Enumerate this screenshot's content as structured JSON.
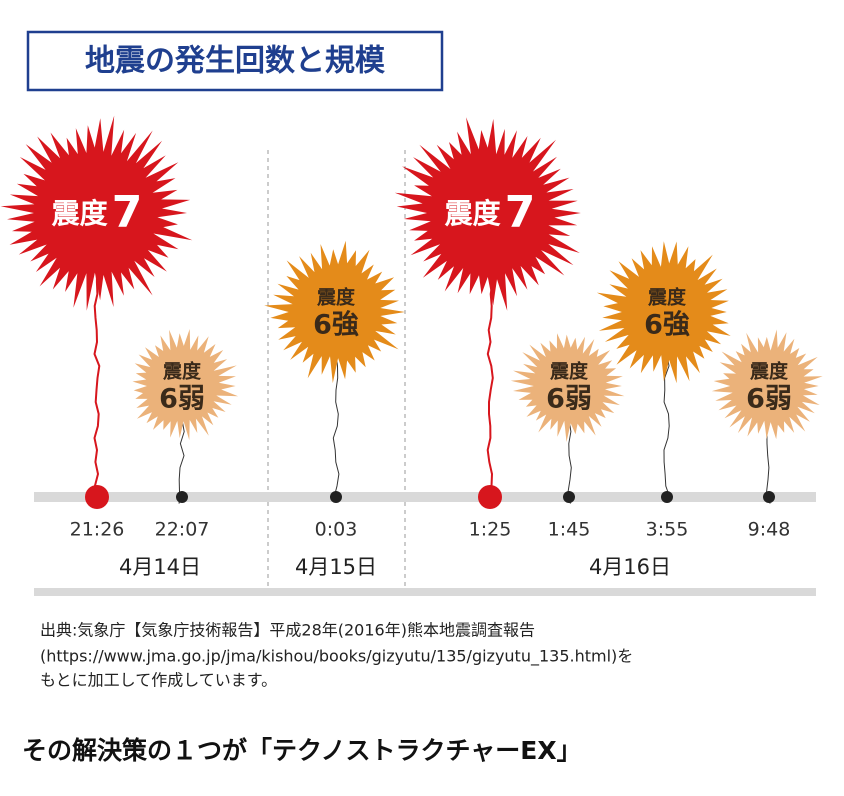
{
  "header": {
    "title": "地震の発生回数と規模"
  },
  "events": [
    {
      "intensity_label": "震度",
      "intensity": "7",
      "time": "21:26",
      "color": "#d7161d"
    },
    {
      "intensity_label": "震度",
      "intensity": "6弱",
      "time": "22:07",
      "color": "#ebb27a"
    },
    {
      "intensity_label": "震度",
      "intensity": "6強",
      "time": "0:03",
      "color": "#e48b1a"
    },
    {
      "intensity_label": "震度",
      "intensity": "7",
      "time": "1:25",
      "color": "#d7161d"
    },
    {
      "intensity_label": "震度",
      "intensity": "6弱",
      "time": "1:45",
      "color": "#ebb27a"
    },
    {
      "intensity_label": "震度",
      "intensity": "6強",
      "time": "3:55",
      "color": "#e48b1a"
    },
    {
      "intensity_label": "震度",
      "intensity": "6弱",
      "time": "9:48",
      "color": "#ebb27a"
    }
  ],
  "dates": [
    "4月14日",
    "4月15日",
    "4月16日"
  ],
  "source": {
    "lines": [
      "出典:気象庁【気象庁技術報告】平成28年(2016年)熊本地震調査報告",
      "(https://www.jma.go.jp/jma/kishou/books/gizyutu/135/gizyutu_135.html)を",
      "もとに加工して作成しています。"
    ]
  },
  "footer": {
    "heading": "その解決策の１つが「テクノストラクチャーEX」"
  }
}
